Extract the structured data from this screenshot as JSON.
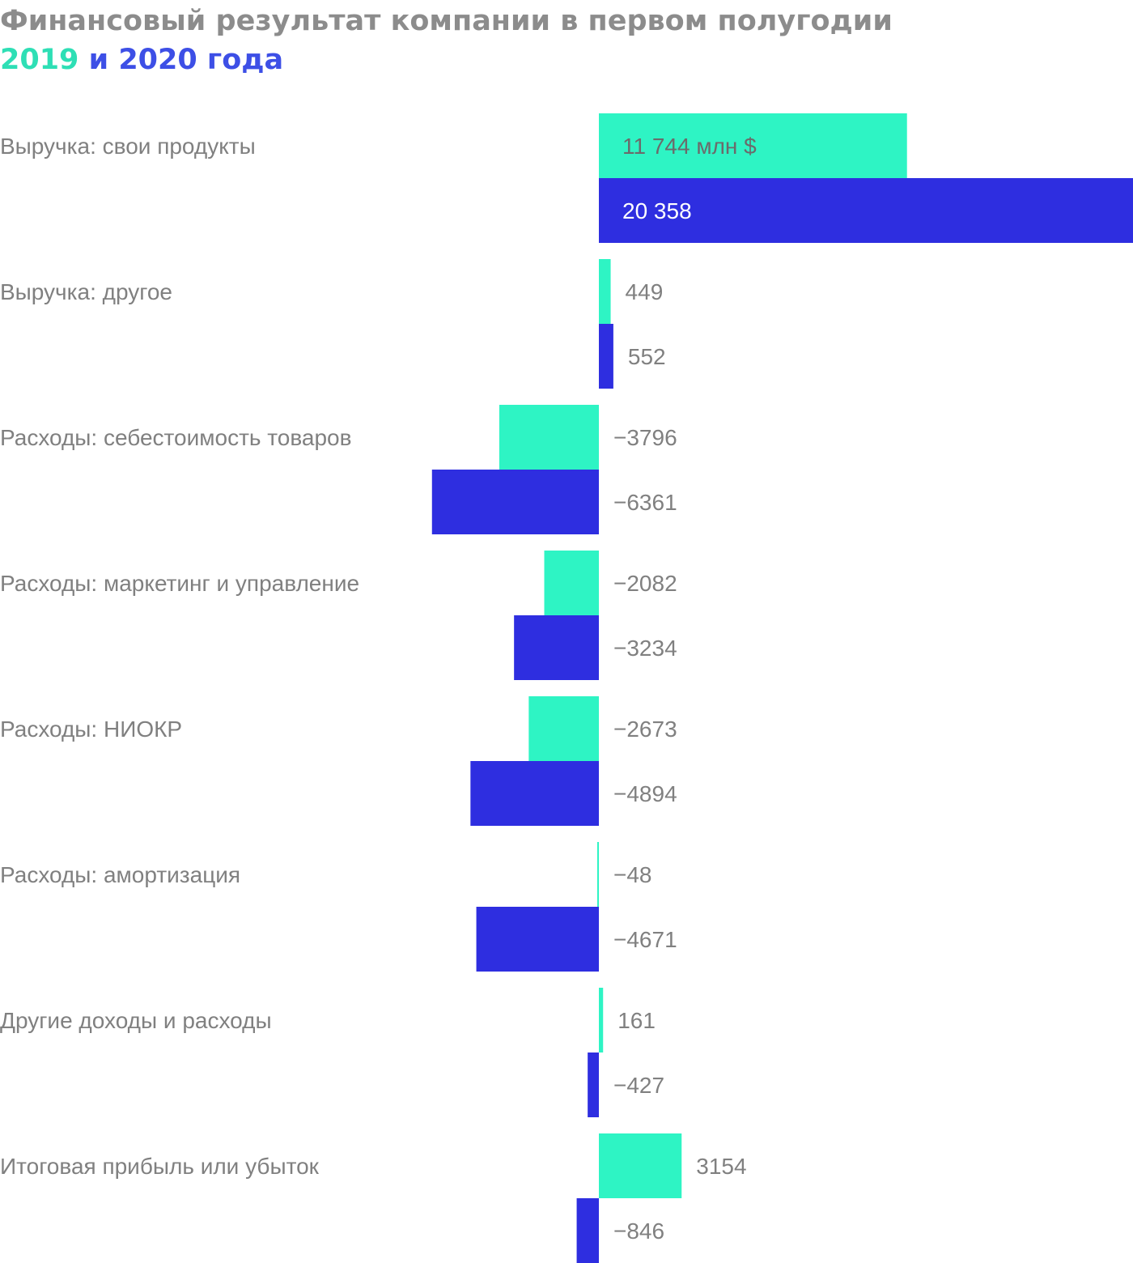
{
  "title": "Финансовый результат компании в первом полугодии",
  "subtitle": {
    "year1": "2019",
    "conj": " и ",
    "year2": "2020 года"
  },
  "colors": {
    "series_2019": "#2ef4c4",
    "series_2020": "#2e2ee0",
    "title": "#8c8c8c",
    "year1_text": "#2edfb5",
    "year2_text": "#3d4fe6",
    "label_text": "#808080",
    "value_text_on_bar": "#ffffff",
    "value_text_on_light_bar": "#6b6b6b"
  },
  "chart_data": {
    "type": "bar",
    "orientation": "horizontal",
    "unit": "млн $",
    "categories": [
      "Выручка: свои продукты",
      "Выручка: другое",
      "Расходы: себестоимость товаров",
      "Расходы: маркетинг и управление",
      "Расходы: НИОКР",
      "Расходы: амортизация",
      "Другие доходы и расходы",
      "Итоговая прибыль или убыток"
    ],
    "series": [
      {
        "year": "2019",
        "values": [
          11744,
          449,
          -3796,
          -2082,
          -2673,
          -48,
          161,
          3154
        ],
        "labels": [
          "11 744 млн $",
          "449",
          "−3796",
          "−2082",
          "−2673",
          "−48",
          "161",
          "3154"
        ]
      },
      {
        "year": "2020",
        "values": [
          20358,
          552,
          -6361,
          -3234,
          -4894,
          -4671,
          -427,
          -846
        ],
        "labels": [
          "20 358",
          "552",
          "−6361",
          "−3234",
          "−4894",
          "−4671",
          "−427",
          "−846"
        ]
      }
    ],
    "xlim": [
      -22700,
      20358
    ],
    "grid": false,
    "legend": "subtitle"
  }
}
